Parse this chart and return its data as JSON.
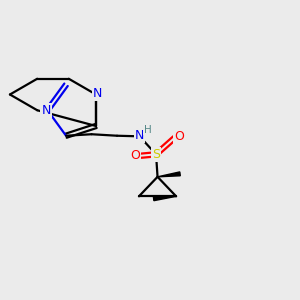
{
  "bg_color": "#ebebeb",
  "atom_colors": {
    "N": "#0000ee",
    "S": "#cccc00",
    "O": "#ff0000",
    "H": "#558888",
    "C": "#000000"
  },
  "bond_lw": 1.6
}
